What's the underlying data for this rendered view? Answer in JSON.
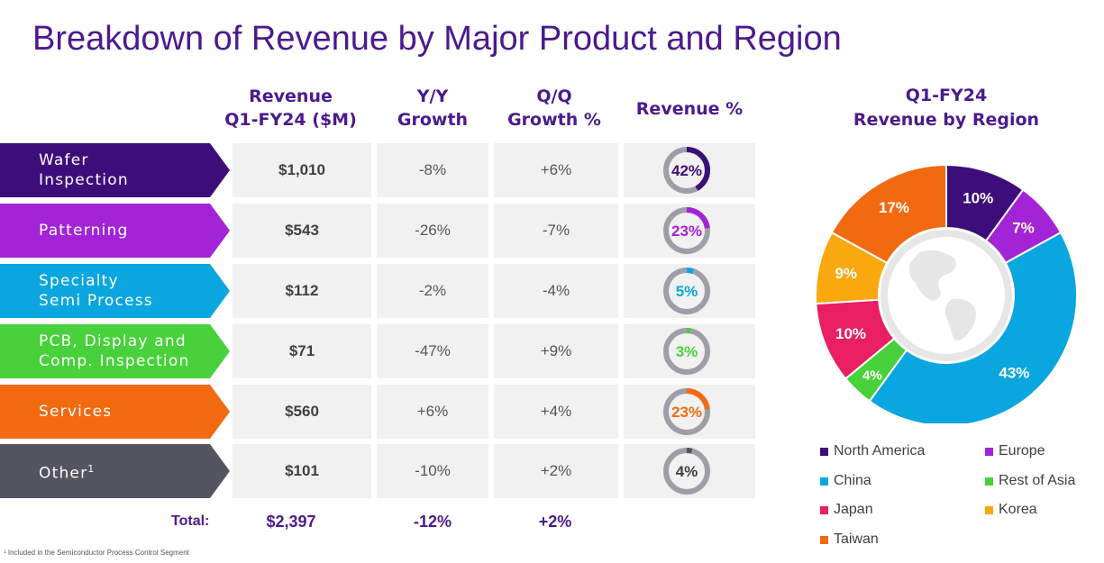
{
  "title": "Breakdown of Revenue by Major Product and Region",
  "headers": {
    "revenue_line1": "Revenue",
    "revenue_line2": "Q1-FY24 ($M)",
    "yy_line1": "Y/Y",
    "yy_line2": "Growth",
    "qq_line1": "Q/Q",
    "qq_line2": "Growth %",
    "pct": "Revenue %"
  },
  "rows": [
    {
      "label1": "Wafer",
      "label2": "Inspection",
      "revenue": "$1,010",
      "yy": "-8%",
      "qq": "+6%",
      "pct_label": "42%",
      "pct_value": 42,
      "color": "#3d0e7a"
    },
    {
      "label1": "Patterning",
      "label2": "",
      "revenue": "$543",
      "yy": "-26%",
      "qq": "-7%",
      "pct_label": "23%",
      "pct_value": 23,
      "color": "#a323d6"
    },
    {
      "label1": "Specialty",
      "label2": "Semi Process",
      "revenue": "$112",
      "yy": "-2%",
      "qq": "-4%",
      "pct_label": "5%",
      "pct_value": 5,
      "color": "#0aa6df"
    },
    {
      "label1": "PCB, Display and",
      "label2": "Comp. Inspection",
      "revenue": "$71",
      "yy": "-47%",
      "qq": "+9%",
      "pct_label": "3%",
      "pct_value": 3,
      "color": "#48d13a"
    },
    {
      "label1": "Services",
      "label2": "",
      "revenue": "$560",
      "yy": "+6%",
      "qq": "+4%",
      "pct_label": "23%",
      "pct_value": 23,
      "color": "#f26a10"
    },
    {
      "label1": "Other",
      "label1_sup": "1",
      "label2": "",
      "revenue": "$101",
      "yy": "-10%",
      "qq": "+2%",
      "pct_label": "4%",
      "pct_value": 4,
      "color": "#55555f"
    }
  ],
  "total": {
    "label": "Total:",
    "revenue": "$2,397",
    "yy": "-12%",
    "qq": "+2%"
  },
  "footnote": "¹ Included in the Semiconductor Process Control Segment",
  "chart_data": {
    "type": "pie",
    "title_line1": "Q1-FY24",
    "title_line2": "Revenue by Region",
    "slices": [
      {
        "name": "North America",
        "value": 10,
        "label": "10%",
        "color": "#3d0e7a",
        "label_color": "#ffffff"
      },
      {
        "name": "Europe",
        "value": 7,
        "label": "7%",
        "color": "#a323d6",
        "label_color": "#ffffff"
      },
      {
        "name": "China",
        "value": 43,
        "label": "43%",
        "color": "#0aa6df",
        "label_color": "#ffffff"
      },
      {
        "name": "Rest of Asia",
        "value": 4,
        "label": "4%",
        "color": "#48d13a",
        "label_color": "#ffffff"
      },
      {
        "name": "Japan",
        "value": 10,
        "label": "10%",
        "color": "#e91e63",
        "label_color": "#ffffff"
      },
      {
        "name": "Korea",
        "value": 9,
        "label": "9%",
        "color": "#f9a80d",
        "label_color": "#ffffff"
      },
      {
        "name": "Taiwan",
        "value": 17,
        "label": "17%",
        "color": "#f26a10",
        "label_color": "#ffffff"
      }
    ],
    "legend": [
      {
        "name": "North America",
        "color": "#3d0e7a"
      },
      {
        "name": "Europe",
        "color": "#a323d6"
      },
      {
        "name": "China",
        "color": "#0aa6df"
      },
      {
        "name": "Rest of Asia",
        "color": "#48d13a"
      },
      {
        "name": "Japan",
        "color": "#e91e63"
      },
      {
        "name": "Korea",
        "color": "#f9a80d"
      },
      {
        "name": "Taiwan",
        "color": "#f26a10"
      }
    ]
  }
}
